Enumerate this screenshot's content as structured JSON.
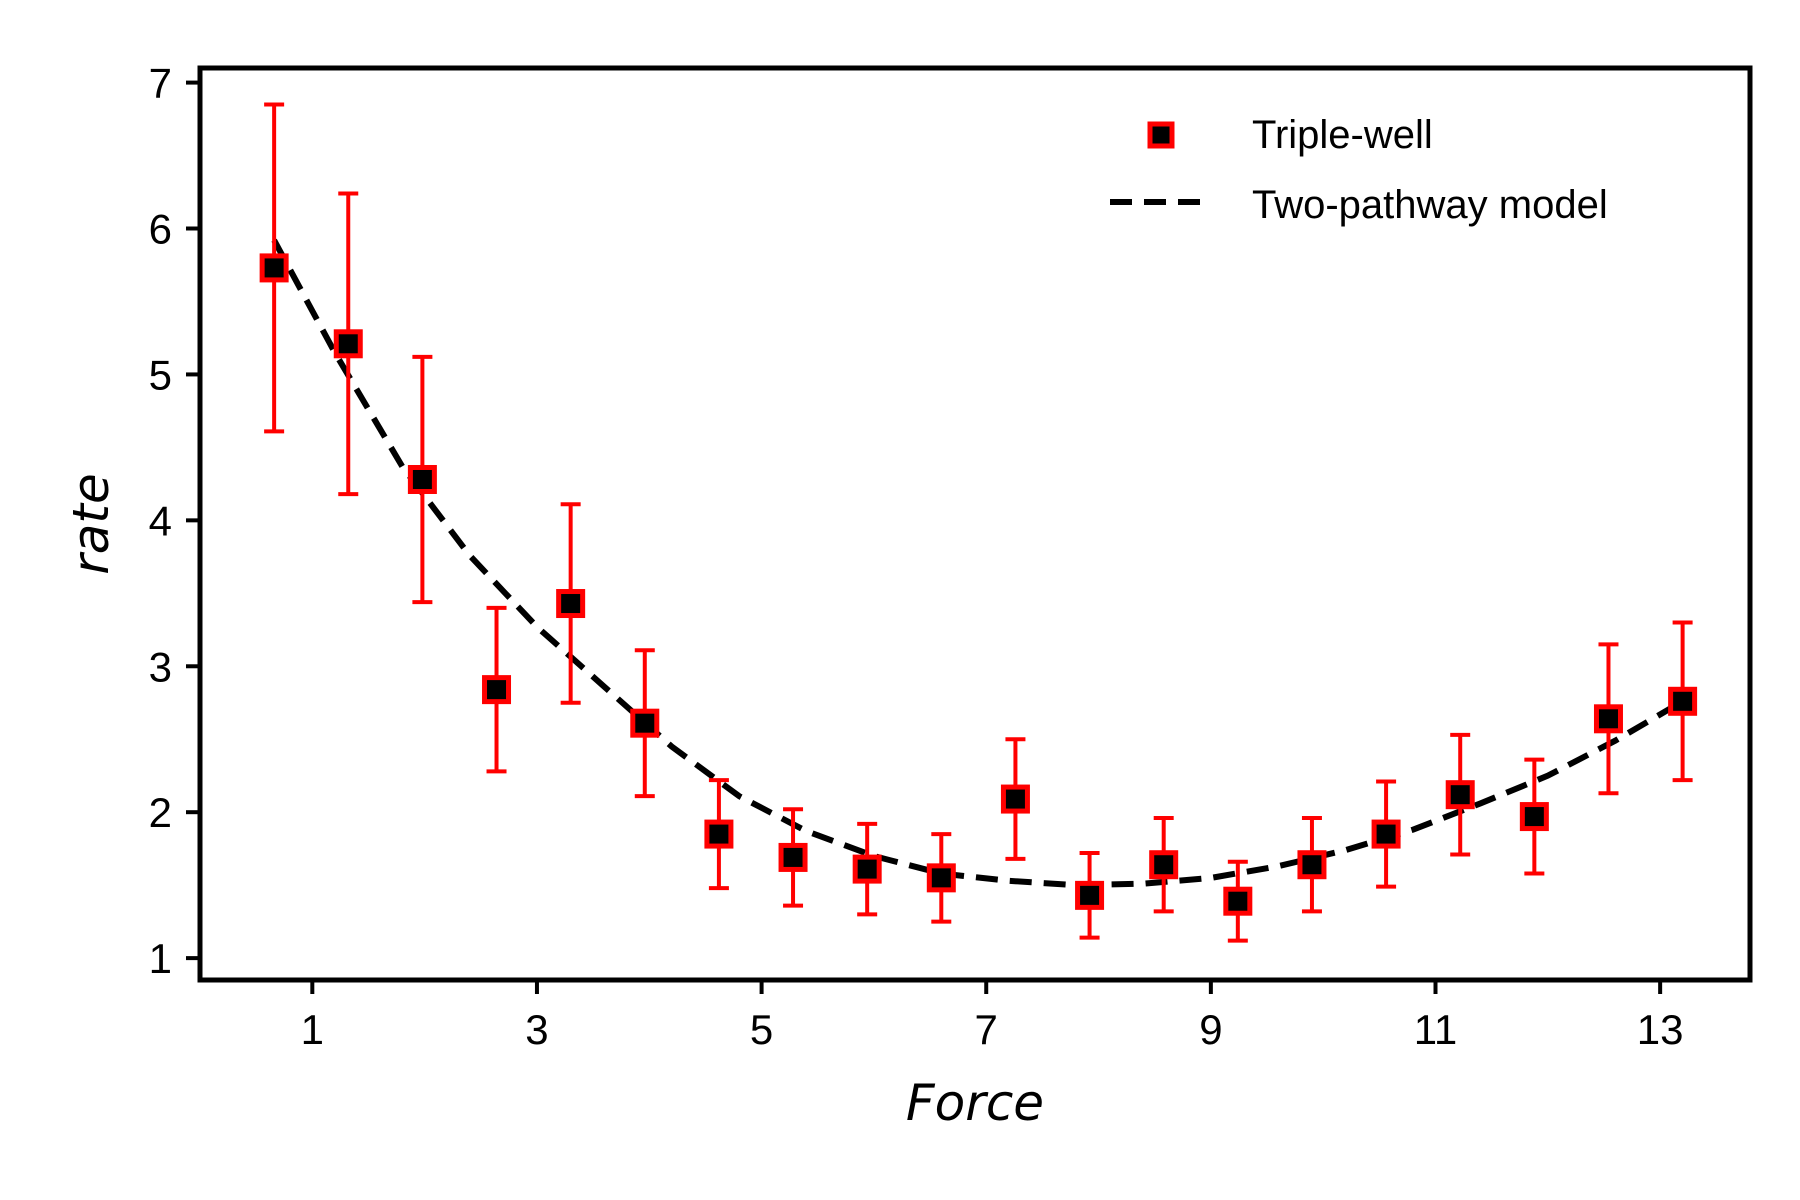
{
  "chart_data": {
    "type": "scatter",
    "xlabel": "Force",
    "ylabel": "rate",
    "xlim": [
      0,
      13.8
    ],
    "ylim": [
      0.85,
      7.1
    ],
    "xticks": [
      1,
      3,
      5,
      7,
      9,
      11,
      13
    ],
    "yticks": [
      1,
      2,
      3,
      4,
      5,
      6,
      7
    ],
    "grid": false,
    "legend_position": "top-right",
    "series": [
      {
        "name": "Triple-well",
        "kind": "errorbar-points",
        "marker": "square",
        "marker_face": "#000000",
        "marker_edge": "#ff0000",
        "errorbar_color": "#ff0000",
        "x": [
          0.66,
          1.32,
          1.98,
          2.64,
          3.3,
          3.96,
          4.62,
          5.28,
          5.94,
          6.6,
          7.26,
          7.92,
          8.58,
          9.24,
          9.9,
          10.56,
          11.22,
          11.88,
          12.54,
          13.2
        ],
        "y": [
          5.73,
          5.21,
          4.28,
          2.84,
          3.43,
          2.61,
          1.85,
          1.69,
          1.61,
          1.55,
          2.09,
          1.43,
          1.64,
          1.39,
          1.64,
          1.85,
          2.12,
          1.97,
          2.64,
          2.76
        ],
        "err": [
          1.12,
          1.03,
          0.84,
          0.56,
          0.68,
          0.5,
          0.37,
          0.33,
          0.31,
          0.3,
          0.41,
          0.29,
          0.32,
          0.27,
          0.32,
          0.36,
          0.41,
          0.39,
          0.51,
          0.54
        ]
      },
      {
        "name": "Two-pathway model",
        "kind": "line",
        "style": "dashed",
        "color": "#000000",
        "x": [
          0.66,
          1.2,
          1.8,
          2.4,
          3.0,
          3.6,
          4.2,
          4.8,
          5.4,
          6.0,
          6.6,
          7.2,
          7.8,
          8.4,
          9.0,
          9.6,
          10.2,
          10.8,
          11.4,
          12.0,
          12.6,
          13.2
        ],
        "y": [
          5.92,
          5.15,
          4.37,
          3.76,
          3.27,
          2.86,
          2.45,
          2.11,
          1.87,
          1.7,
          1.58,
          1.53,
          1.5,
          1.51,
          1.55,
          1.63,
          1.74,
          1.88,
          2.06,
          2.25,
          2.49,
          2.76
        ]
      }
    ]
  }
}
